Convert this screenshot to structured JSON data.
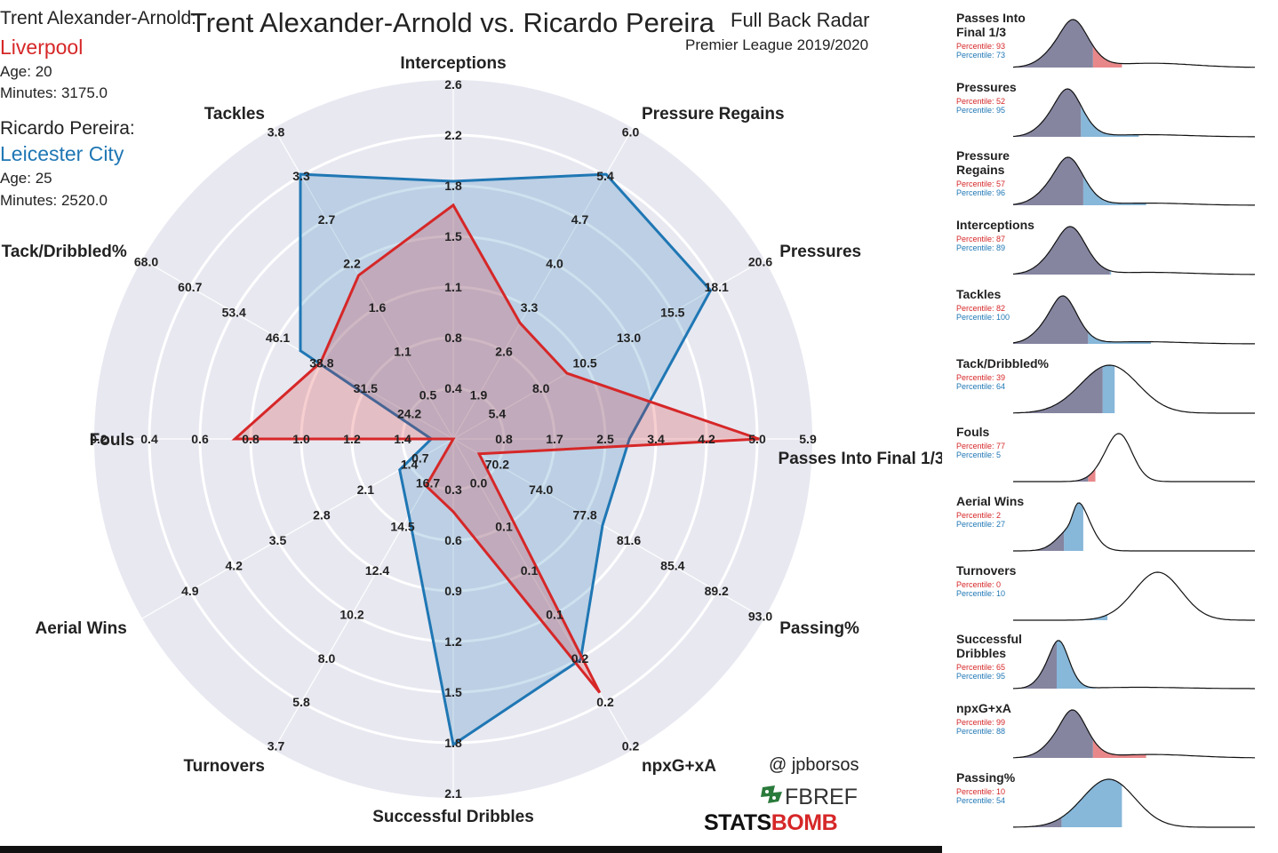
{
  "header": {
    "title": "Trent Alexander-Arnold vs. Ricardo Pereira",
    "subtitle": "Full Back Radar",
    "league": "Premier League 2019/2020"
  },
  "players": [
    {
      "label": "Trent Alexander-Arnold:",
      "club": "Liverpool",
      "age": "Age: 20",
      "minutes": "Minutes: 3175.0",
      "color": "#d62728"
    },
    {
      "label": "Ricardo Pereira:",
      "club": "Leicester City",
      "age": "Age: 25",
      "minutes": "Minutes: 2520.0",
      "color": "#1f77b4"
    }
  ],
  "credits": {
    "handle": "@ jpborsos",
    "fbref": "FBREF",
    "statsbomb_a": "STATS",
    "statsbomb_b": "BOMB"
  },
  "chart_data": [
    {
      "type": "radar",
      "axes": [
        {
          "name": "Passes Into Final 1/3",
          "ticks": [
            "0.8",
            "1.7",
            "2.5",
            "3.4",
            "4.2",
            "5.0",
            "5.9"
          ],
          "min": 0,
          "max": 5.9
        },
        {
          "name": "Pressures",
          "ticks": [
            "5.4",
            "8.0",
            "10.5",
            "13.0",
            "15.5",
            "18.1",
            "20.6"
          ],
          "min": 2.9,
          "max": 20.6
        },
        {
          "name": "Pressure Regains",
          "ticks": [
            "1.9",
            "2.6",
            "3.3",
            "4.0",
            "4.7",
            "5.4",
            "6.0"
          ],
          "min": 1.2,
          "max": 6.0
        },
        {
          "name": "Interceptions",
          "ticks": [
            "0.4",
            "0.8",
            "1.1",
            "1.5",
            "1.8",
            "2.2",
            "2.6"
          ],
          "min": 0.05,
          "max": 2.6
        },
        {
          "name": "Tackles",
          "ticks": [
            "0.5",
            "1.1",
            "1.6",
            "2.2",
            "2.7",
            "3.3",
            "3.8"
          ],
          "min": 0,
          "max": 3.8
        },
        {
          "name": "Tack/Dribbled%",
          "ticks": [
            "24.2",
            "31.5",
            "38.8",
            "46.1",
            "53.4",
            "60.7",
            "68.0"
          ],
          "min": 16.9,
          "max": 68.0
        },
        {
          "name": "Fouls",
          "ticks": [
            "1.4",
            "1.2",
            "1.0",
            "0.8",
            "0.6",
            "0.4",
            "0.2"
          ],
          "min": 1.6,
          "max": 0.2
        },
        {
          "name": "Aerial Wins",
          "ticks": [
            "1.4",
            "2.1",
            "2.8",
            "3.5",
            "4.2",
            "4.9"
          ],
          "min": 0.7,
          "max": 4.9
        },
        {
          "name": "Turnovers",
          "ticks": [
            "16.7",
            "14.5",
            "12.4",
            "10.2",
            "8.0",
            "5.8",
            "3.7"
          ],
          "min": 18.9,
          "max": 3.7
        },
        {
          "name": "Successful Dribbles",
          "ticks": [
            "0.3",
            "0.6",
            "0.9",
            "1.2",
            "1.5",
            "1.8",
            "2.1"
          ],
          "min": 0.0,
          "max": 2.1
        },
        {
          "name": "npxG+xA",
          "ticks": [
            "0.0",
            "0.1",
            "0.1",
            "0.1",
            "0.2",
            "0.2",
            "0.2"
          ],
          "min": 0.0,
          "max": 0.24
        },
        {
          "name": "Passing%",
          "ticks": [
            "70.2",
            "74.0",
            "77.8",
            "81.6",
            "85.4",
            "89.2",
            "93.0"
          ],
          "min": 66.4,
          "max": 93.0
        }
      ],
      "extra_labels": [
        {
          "text": "0.7",
          "axis": 7
        }
      ],
      "series": [
        {
          "name": "Trent Alexander-Arnold",
          "color": "#d62728",
          "values": [
            5.9,
            10.5,
            3.3,
            2.0,
            2.35,
            42.5,
            0.6,
            0.7,
            16.2,
            0.5,
            0.23,
            69.0
          ]
        },
        {
          "name": "Ricardo Pereira",
          "color": "#1f77b4",
          "values": [
            3.4,
            20.1,
            6.0,
            2.2,
            3.8,
            46.4,
            1.5,
            1.55,
            14.5,
            2.1,
            0.2,
            81.4
          ]
        }
      ]
    },
    {
      "type": "density",
      "series_colors": {
        "a": "#d62728",
        "b": "#1f77b4",
        "shade_a": "#e8878a",
        "shade_b": "#87b7d9",
        "overlap": "#8585a0"
      },
      "panels": [
        {
          "title": [
            "Passes Into",
            "Final 1/3"
          ],
          "pct_a": "Percentile: 93",
          "pct_b": "Percentile: 73",
          "peak": 0.22,
          "spread": 0.075,
          "skew": 1.6,
          "tail": 0.1,
          "val_a": 0.45,
          "val_b": 0.33
        },
        {
          "title": [
            "Pressures"
          ],
          "pct_a": "Percentile: 52",
          "pct_b": "Percentile: 95",
          "peak": 0.2,
          "spread": 0.07,
          "skew": 1.5,
          "tail": 0.05,
          "val_a": 0.28,
          "val_b": 0.52
        },
        {
          "title": [
            "Pressure",
            "Regains"
          ],
          "pct_a": "Percentile: 57",
          "pct_b": "Percentile: 96",
          "peak": 0.2,
          "spread": 0.075,
          "skew": 1.6,
          "tail": 0.05,
          "val_a": 0.29,
          "val_b": 0.55
        },
        {
          "title": [
            "Interceptions"
          ],
          "pct_a": "Percentile: 87",
          "pct_b": "Percentile: 89",
          "peak": 0.21,
          "spread": 0.075,
          "skew": 1.4,
          "tail": 0.05,
          "val_a": 0.4,
          "val_b": 0.405
        },
        {
          "title": [
            "Tackles"
          ],
          "pct_a": "Percentile: 82",
          "pct_b": "Percentile: 100",
          "peak": 0.18,
          "spread": 0.07,
          "skew": 1.6,
          "tail": 0.05,
          "val_a": 0.31,
          "val_b": 0.57
        },
        {
          "title": [
            "Tack/Dribbled%"
          ],
          "pct_a": "Percentile: 39",
          "pct_b": "Percentile: 64",
          "peak": 0.38,
          "spread": 0.12,
          "skew": 0.5,
          "tail": 0.0,
          "val_a": 0.37,
          "val_b": 0.42
        },
        {
          "title": [
            "Fouls"
          ],
          "pct_a": "Percentile: 77",
          "pct_b": "Percentile: 5",
          "peak": 0.42,
          "spread": 0.06,
          "skew": 1.0,
          "tail": 0.0,
          "val_a": 0.34,
          "val_b": 0.31
        },
        {
          "title": [
            "Aerial Wins"
          ],
          "pct_a": "Percentile: 2",
          "pct_b": "Percentile: 27",
          "peak": 0.25,
          "spread": 0.06,
          "skew": 3.5,
          "tail": 0.0,
          "val_a": 0.21,
          "val_b": 0.29
        },
        {
          "title": [
            "Turnovers"
          ],
          "pct_a": "Percentile: 0",
          "pct_b": "Percentile: 10",
          "peak": 0.58,
          "spread": 0.1,
          "skew": 0.6,
          "tail": 0.0,
          "val_a": 0.0,
          "val_b": 0.39
        },
        {
          "title": [
            "Successful",
            "Dribbles"
          ],
          "pct_a": "Percentile: 65",
          "pct_b": "Percentile: 95",
          "peak": 0.17,
          "spread": 0.05,
          "skew": 1.5,
          "tail": 0.03,
          "val_a": 0.18,
          "val_b": 0.34
        },
        {
          "title": [
            "npxG+xA"
          ],
          "pct_a": "Percentile: 99",
          "pct_b": "Percentile: 88",
          "peak": 0.22,
          "spread": 0.07,
          "skew": 1.6,
          "tail": 0.08,
          "val_a": 0.55,
          "val_b": 0.33
        },
        {
          "title": [
            "Passing%"
          ],
          "pct_a": "Percentile: 10",
          "pct_b": "Percentile: 54",
          "peak": 0.38,
          "spread": 0.11,
          "skew": 0.45,
          "tail": 0.0,
          "val_a": 0.2,
          "val_b": 0.45
        }
      ]
    }
  ]
}
